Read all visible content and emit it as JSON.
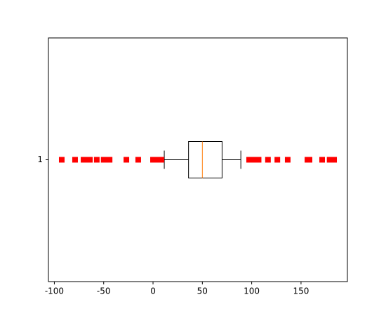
{
  "chart_data": {
    "type": "boxplot",
    "orientation": "horizontal",
    "categories": [
      "1"
    ],
    "boxes": [
      {
        "whislo": 11.4,
        "q1": 36,
        "med": 50,
        "q3": 70,
        "whishi": 89,
        "fliers": [
          -92.5,
          -79,
          -70.4,
          -66,
          -64,
          -57,
          -50,
          -47,
          -44,
          -27,
          -15,
          0,
          3,
          6,
          8.5,
          97.4,
          101,
          104,
          107,
          116.5,
          126,
          136.5,
          156.5,
          158.6,
          171.4,
          179,
          183.5
        ]
      }
    ],
    "box_color": "#000000",
    "median_color": "#ff7f0e",
    "flier_color": "#ff0000",
    "xlim": [
      -106,
      197
    ],
    "xticks": [
      -100,
      -50,
      0,
      50,
      100,
      150
    ]
  }
}
